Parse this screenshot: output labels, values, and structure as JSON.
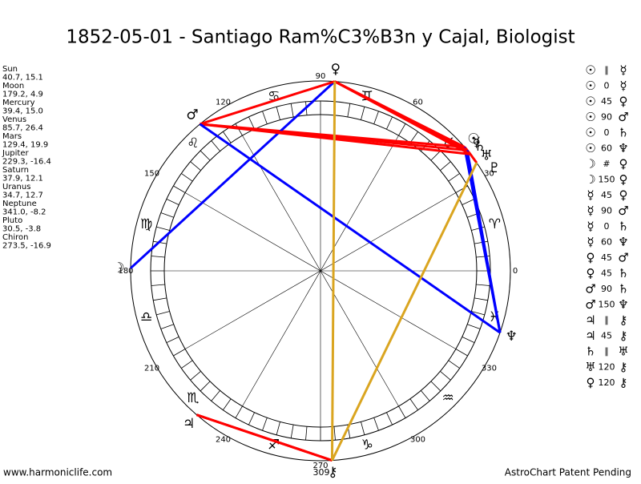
{
  "header": {
    "title": "1852-05-01 - Santiago Ram%C3%B3n y Cajal, Biologist"
  },
  "planets": [
    {
      "name": "Sun",
      "glyph": "☉",
      "coords": "40.7, 15.1"
    },
    {
      "name": "Moon",
      "glyph": "☽",
      "coords": "179.2, 4.9"
    },
    {
      "name": "Mercury",
      "glyph": "☿",
      "coords": "39.4, 15.0"
    },
    {
      "name": "Venus",
      "glyph": "♀",
      "coords": "85.7, 26.4"
    },
    {
      "name": "Mars",
      "glyph": "♂",
      "coords": "129.4, 19.9"
    },
    {
      "name": "Jupiter",
      "glyph": "♃",
      "coords": "229.3, -16.4"
    },
    {
      "name": "Saturn",
      "glyph": "♄",
      "coords": "37.9, 12.1"
    },
    {
      "name": "Uranus",
      "glyph": "♅",
      "coords": "34.7, 12.7"
    },
    {
      "name": "Neptune",
      "glyph": "♆",
      "coords": "341.0, -8.2"
    },
    {
      "name": "Pluto",
      "glyph": "♇",
      "coords": "30.5, -3.8"
    },
    {
      "name": "Chiron",
      "glyph": "⚷",
      "coords": "273.5, -16.9"
    }
  ],
  "signs": [
    "♈",
    "♉",
    "♊",
    "♋",
    "♌",
    "♍",
    "♎",
    "♏",
    "♐",
    "♑",
    "♒",
    "♓"
  ],
  "degree_labels": [
    0,
    30,
    60,
    90,
    120,
    150,
    180,
    210,
    240,
    270,
    300,
    330
  ],
  "extra_label": "309",
  "aspects": [
    {
      "p1": "☉",
      "aspect": "∥",
      "p2": "☿",
      "color": "#ff0000"
    },
    {
      "p1": "☉",
      "aspect": "0",
      "p2": "☿",
      "color": "#ff0000"
    },
    {
      "p1": "☉",
      "aspect": "45",
      "p2": "♀",
      "color": "#ff0000"
    },
    {
      "p1": "☉",
      "aspect": "90",
      "p2": "♂",
      "color": "#ff0000"
    },
    {
      "p1": "☉",
      "aspect": "0",
      "p2": "♄",
      "color": "#ff0000"
    },
    {
      "p1": "☉",
      "aspect": "60",
      "p2": "♆",
      "color": "#0000ff"
    },
    {
      "p1": "☽",
      "aspect": "#",
      "p2": "♀",
      "color": "#ff0000"
    },
    {
      "p1": "☽",
      "aspect": "150",
      "p2": "♀",
      "color": "#0000ff"
    },
    {
      "p1": "☿",
      "aspect": "45",
      "p2": "♀",
      "color": "#ff0000"
    },
    {
      "p1": "☿",
      "aspect": "90",
      "p2": "♂",
      "color": "#ff0000"
    },
    {
      "p1": "☿",
      "aspect": "0",
      "p2": "♄",
      "color": "#ff0000"
    },
    {
      "p1": "☿",
      "aspect": "60",
      "p2": "♆",
      "color": "#0000ff"
    },
    {
      "p1": "♀",
      "aspect": "45",
      "p2": "♂",
      "color": "#ff0000"
    },
    {
      "p1": "♀",
      "aspect": "45",
      "p2": "♄",
      "color": "#ff0000"
    },
    {
      "p1": "♂",
      "aspect": "90",
      "p2": "♄",
      "color": "#ff0000"
    },
    {
      "p1": "♂",
      "aspect": "150",
      "p2": "♆",
      "color": "#0000ff"
    },
    {
      "p1": "♃",
      "aspect": "∥",
      "p2": "⚷",
      "color": "#ff0000"
    },
    {
      "p1": "♃",
      "aspect": "45",
      "p2": "⚷",
      "color": "#ff0000"
    },
    {
      "p1": "♄",
      "aspect": "∥",
      "p2": "♅",
      "color": "#ff0000"
    },
    {
      "p1": "♅",
      "aspect": "120",
      "p2": "⚷",
      "color": "#daa520"
    },
    {
      "p1": "♀",
      "aspect": "120",
      "p2": "⚷",
      "color": "#daa520"
    }
  ],
  "footer": {
    "left": "www.harmoniclife.com",
    "right": "AstroChart Patent Pending"
  }
}
